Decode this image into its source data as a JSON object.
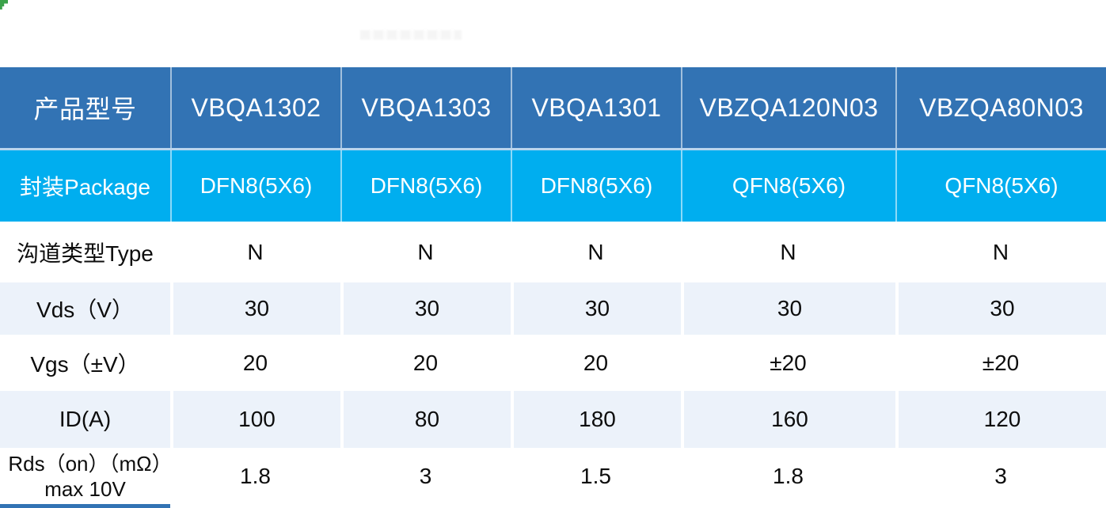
{
  "decorations": {
    "green_corner_mark_color": "#3ba24a",
    "continuation_strip_color": "#3273b4"
  },
  "table": {
    "colors": {
      "header_bg": "#3273b4",
      "header_text": "#ffffff",
      "package_bg": "#00aeef",
      "package_text": "#ffffff",
      "alt_row_bg": "#ecf2fa",
      "body_text": "#0d0d0d",
      "divider": "#b9d5ee"
    },
    "header": {
      "label": "产品型号",
      "models": [
        "VBQA1302",
        "VBQA1303",
        "VBQA1301",
        "VBZQA120N03",
        "VBZQA80N03"
      ]
    },
    "package": {
      "label": "封装Package",
      "values": [
        "DFN8(5X6)",
        "DFN8(5X6)",
        "DFN8(5X6)",
        "QFN8(5X6)",
        "QFN8(5X6)"
      ]
    },
    "spec_rows": [
      {
        "label": "沟道类型Type",
        "values": [
          "N",
          "N",
          "N",
          "N",
          "N"
        ]
      },
      {
        "label": "Vds（V）",
        "values": [
          "30",
          "30",
          "30",
          "30",
          "30"
        ]
      },
      {
        "label": "Vgs（±V）",
        "values": [
          "20",
          "20",
          "20",
          "±20",
          "±20"
        ]
      },
      {
        "label": "ID(A)",
        "values": [
          "100",
          "80",
          "180",
          "160",
          "120"
        ]
      },
      {
        "label": "Rds（on）（mΩ）max 10V",
        "values": [
          "1.8",
          "3",
          "1.5",
          "1.8",
          "3"
        ]
      }
    ]
  }
}
